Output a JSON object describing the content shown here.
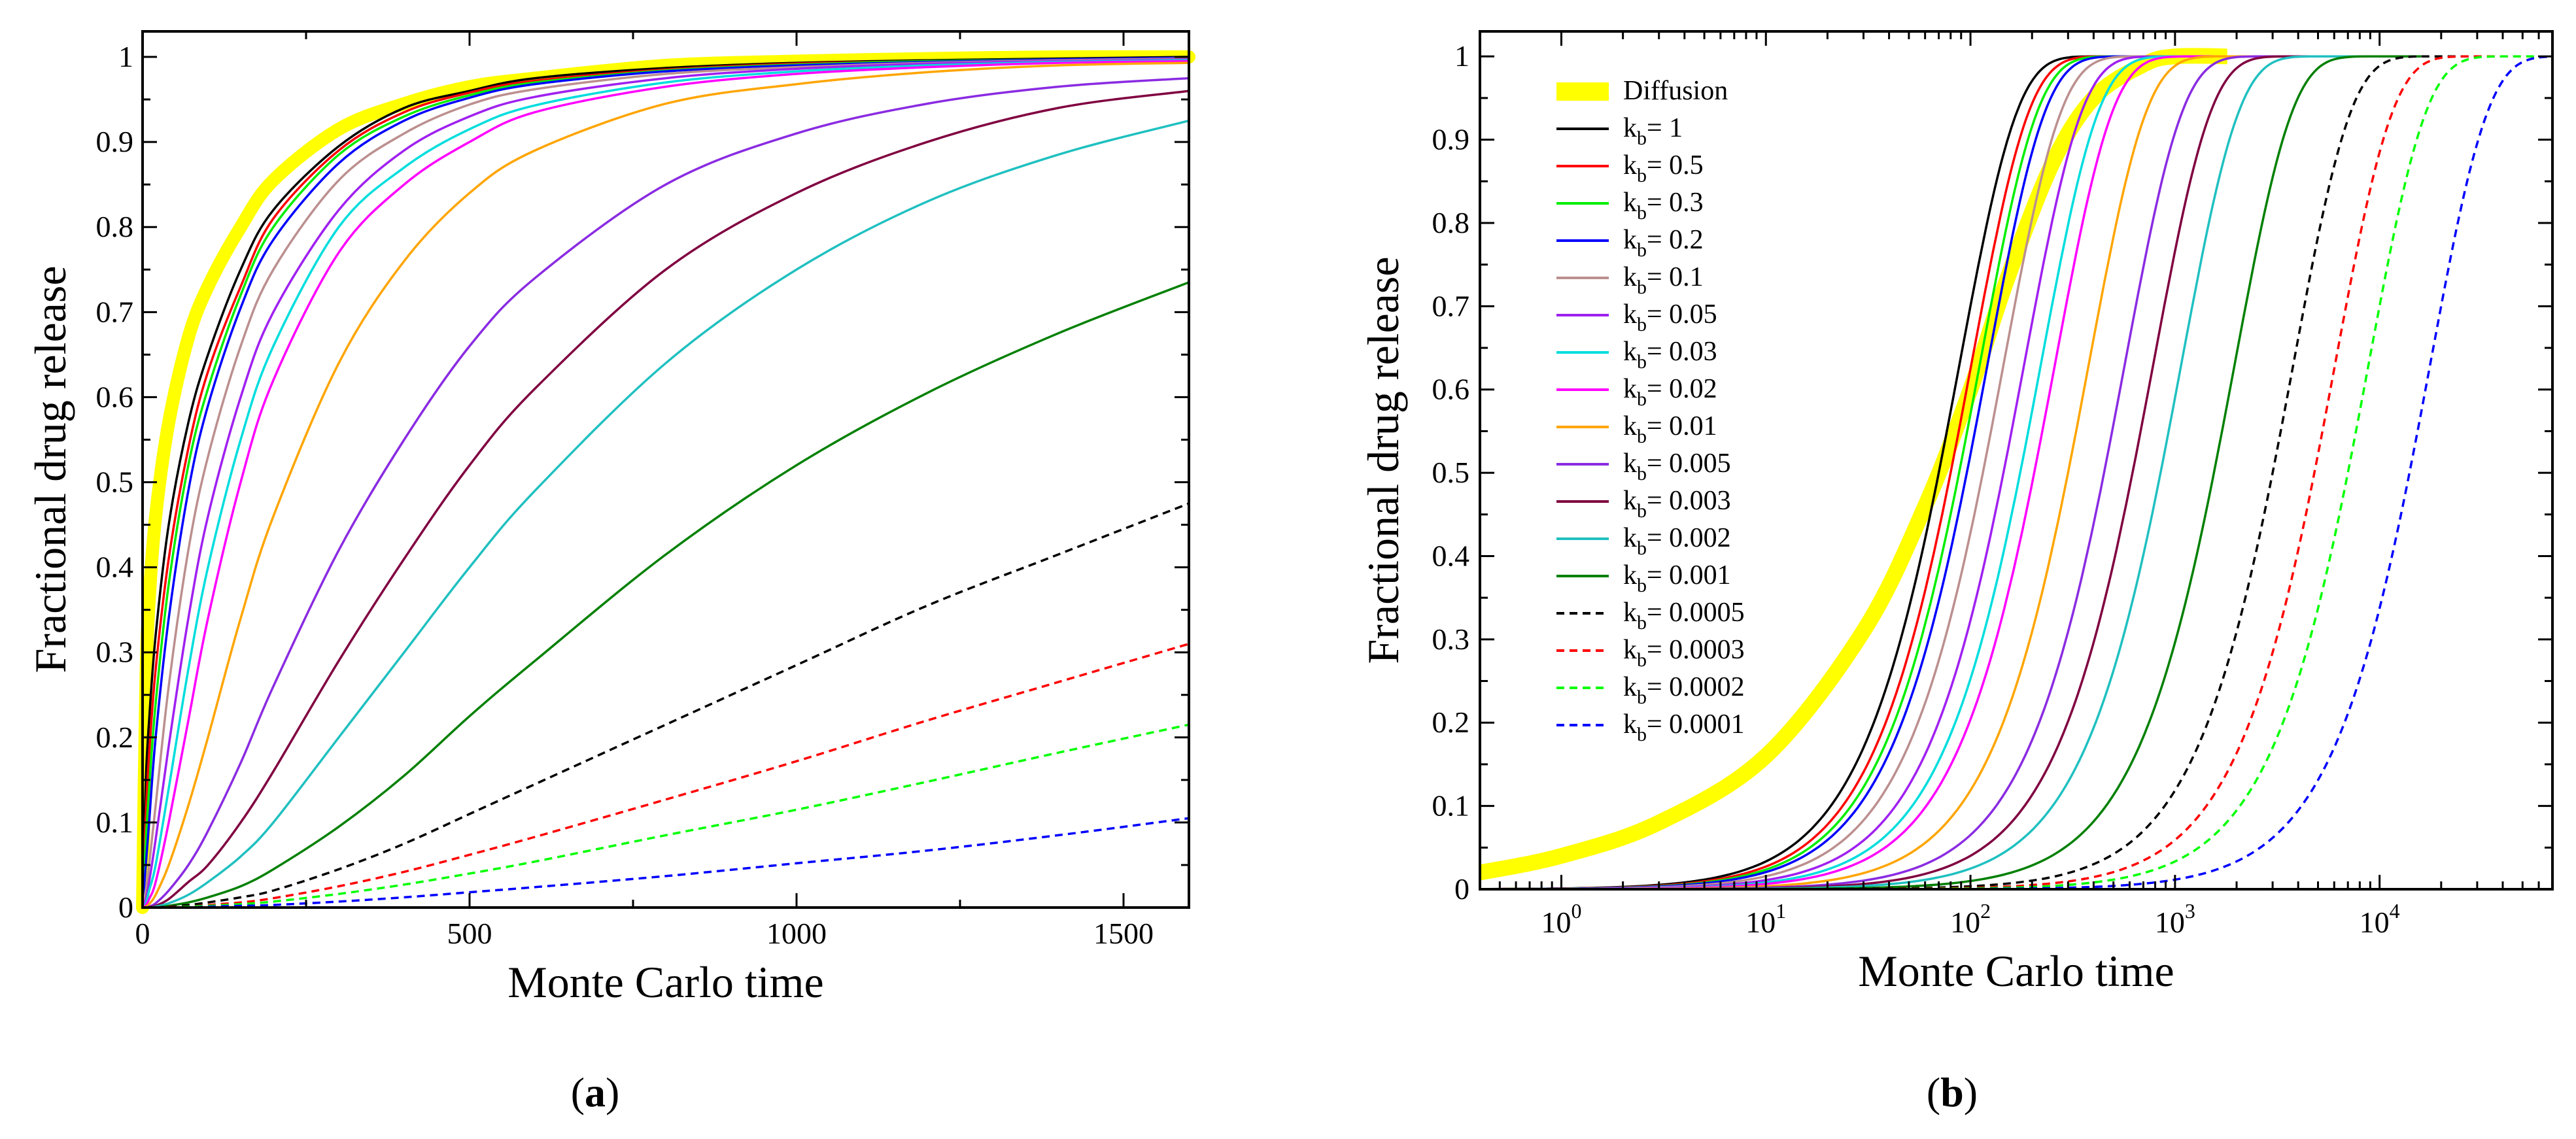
{
  "panel_labels": [
    {
      "open": "(",
      "letter": "a",
      "close": ")"
    },
    {
      "open": "(",
      "letter": "b",
      "close": ")"
    }
  ],
  "chart_data": [
    {
      "type": "line",
      "xlabel": "Monte Carlo time",
      "ylabel": "Fractional drug release",
      "xlim": [
        0,
        1600
      ],
      "ylim": [
        0,
        1.03
      ],
      "xscale": "linear",
      "x_ticks": [
        0,
        500,
        1000,
        1500
      ],
      "x_tick_labels": [
        "0",
        "500",
        "1000",
        "1500"
      ],
      "y_ticks": [
        0,
        0.1,
        0.2,
        0.3,
        0.4,
        0.5,
        0.6,
        0.7,
        0.8,
        0.9,
        1
      ],
      "y_tick_labels": [
        "0",
        "0.1",
        "0.2",
        "0.3",
        "0.4",
        "0.5",
        "0.6",
        "0.7",
        "0.8",
        "0.9",
        "1"
      ],
      "grid": false,
      "legend": "none",
      "x_samples": [
        0,
        5,
        10,
        20,
        40,
        70,
        100,
        150,
        200,
        300,
        400,
        500,
        600,
        800,
        1000,
        1200,
        1400,
        1600
      ],
      "series": [
        {
          "color": "#ffff00",
          "style": "thick",
          "values": [
            0,
            0.26,
            0.36,
            0.46,
            0.57,
            0.67,
            0.73,
            0.8,
            0.855,
            0.915,
            0.945,
            0.965,
            0.975,
            0.99,
            0.995,
            0.998,
            1.0,
            1.0
          ]
        },
        {
          "color": "#000000",
          "style": "solid",
          "values": [
            0,
            0.15,
            0.22,
            0.32,
            0.45,
            0.57,
            0.65,
            0.75,
            0.82,
            0.895,
            0.94,
            0.96,
            0.975,
            0.987,
            0.993,
            0.996,
            0.998,
            1.0
          ]
        },
        {
          "color": "#ff0000",
          "style": "solid",
          "values": [
            0,
            0.11,
            0.18,
            0.28,
            0.41,
            0.54,
            0.63,
            0.73,
            0.81,
            0.89,
            0.935,
            0.958,
            0.972,
            0.985,
            0.992,
            0.995,
            0.997,
            0.999
          ]
        },
        {
          "color": "#00ee00",
          "style": "solid",
          "values": [
            0,
            0.08,
            0.14,
            0.24,
            0.38,
            0.52,
            0.61,
            0.72,
            0.8,
            0.885,
            0.93,
            0.955,
            0.97,
            0.984,
            0.991,
            0.995,
            0.997,
            0.999
          ]
        },
        {
          "color": "#0000ff",
          "style": "solid",
          "values": [
            0,
            0.05,
            0.1,
            0.2,
            0.34,
            0.49,
            0.59,
            0.705,
            0.785,
            0.875,
            0.925,
            0.952,
            0.968,
            0.983,
            0.99,
            0.994,
            0.997,
            0.999
          ]
        },
        {
          "color": "#bc8f8f",
          "style": "solid",
          "values": [
            0,
            0.02,
            0.05,
            0.12,
            0.26,
            0.42,
            0.53,
            0.66,
            0.75,
            0.855,
            0.91,
            0.944,
            0.962,
            0.98,
            0.988,
            0.993,
            0.996,
            0.998
          ]
        },
        {
          "color": "#a020f0",
          "style": "solid",
          "values": [
            0,
            0.01,
            0.03,
            0.08,
            0.19,
            0.34,
            0.46,
            0.6,
            0.7,
            0.82,
            0.89,
            0.93,
            0.953,
            0.975,
            0.986,
            0.992,
            0.995,
            0.997
          ]
        },
        {
          "color": "#00dddd",
          "style": "solid",
          "values": [
            0,
            0.005,
            0.02,
            0.05,
            0.14,
            0.28,
            0.4,
            0.55,
            0.66,
            0.8,
            0.87,
            0.915,
            0.943,
            0.97,
            0.983,
            0.99,
            0.994,
            0.996
          ]
        },
        {
          "color": "#ff00ff",
          "style": "solid",
          "values": [
            0,
            0.003,
            0.01,
            0.03,
            0.1,
            0.22,
            0.34,
            0.5,
            0.62,
            0.77,
            0.85,
            0.9,
            0.935,
            0.965,
            0.98,
            0.988,
            0.993,
            0.995
          ]
        },
        {
          "color": "#ffa500",
          "style": "solid",
          "values": [
            0,
            0.001,
            0.004,
            0.015,
            0.05,
            0.12,
            0.2,
            0.34,
            0.46,
            0.64,
            0.76,
            0.84,
            0.89,
            0.945,
            0.968,
            0.982,
            0.99,
            0.993
          ]
        },
        {
          "color": "#8a2be2",
          "style": "solid",
          "values": [
            0,
            0,
            0.001,
            0.005,
            0.02,
            0.05,
            0.09,
            0.17,
            0.26,
            0.42,
            0.55,
            0.66,
            0.74,
            0.85,
            0.91,
            0.945,
            0.965,
            0.975
          ]
        },
        {
          "color": "#800040",
          "style": "solid",
          "values": [
            0,
            0,
            0.0005,
            0.002,
            0.01,
            0.03,
            0.05,
            0.1,
            0.16,
            0.29,
            0.41,
            0.52,
            0.61,
            0.75,
            0.84,
            0.9,
            0.94,
            0.96
          ]
        },
        {
          "color": "#20c0c0",
          "style": "solid",
          "values": [
            0,
            0,
            0,
            0.001,
            0.005,
            0.015,
            0.03,
            0.06,
            0.1,
            0.2,
            0.3,
            0.4,
            0.49,
            0.64,
            0.75,
            0.83,
            0.885,
            0.925
          ]
        },
        {
          "color": "#008000",
          "style": "solid",
          "values": [
            0,
            0,
            0,
            0,
            0.002,
            0.006,
            0.012,
            0.025,
            0.045,
            0.095,
            0.155,
            0.225,
            0.29,
            0.415,
            0.52,
            0.605,
            0.675,
            0.735
          ]
        },
        {
          "color": "#000000",
          "style": "dashed",
          "values": [
            0,
            0,
            0,
            0,
            0.001,
            0.003,
            0.006,
            0.012,
            0.02,
            0.045,
            0.075,
            0.11,
            0.145,
            0.215,
            0.285,
            0.355,
            0.415,
            0.475
          ]
        },
        {
          "color": "#ff0000",
          "style": "dashed",
          "values": [
            0,
            0,
            0,
            0,
            0.0005,
            0.001,
            0.003,
            0.006,
            0.011,
            0.025,
            0.042,
            0.062,
            0.083,
            0.127,
            0.172,
            0.22,
            0.265,
            0.31
          ]
        },
        {
          "color": "#00ff00",
          "style": "dashed",
          "values": [
            0,
            0,
            0,
            0,
            0,
            0.001,
            0.002,
            0.004,
            0.007,
            0.016,
            0.027,
            0.04,
            0.054,
            0.085,
            0.115,
            0.148,
            0.182,
            0.215
          ]
        },
        {
          "color": "#0000ff",
          "style": "dashed",
          "values": [
            0,
            0,
            0,
            0,
            0,
            0,
            0.001,
            0.002,
            0.003,
            0.007,
            0.012,
            0.018,
            0.024,
            0.037,
            0.052,
            0.067,
            0.085,
            0.105
          ]
        }
      ]
    },
    {
      "type": "line",
      "xlabel": "Monte Carlo time",
      "ylabel": "Fractional drug release",
      "xscale": "log",
      "xlim": [
        0.4,
        70000
      ],
      "ylim": [
        0,
        1.03
      ],
      "x_ticks": [
        1,
        10,
        100,
        1000,
        10000
      ],
      "x_tick_labels": [
        {
          "base": "10",
          "exp": "0"
        },
        {
          "base": "10",
          "exp": "1"
        },
        {
          "base": "10",
          "exp": "2"
        },
        {
          "base": "10",
          "exp": "3"
        },
        {
          "base": "10",
          "exp": "4"
        }
      ],
      "y_ticks": [
        0,
        0.1,
        0.2,
        0.3,
        0.4,
        0.5,
        0.6,
        0.7,
        0.8,
        0.9,
        1
      ],
      "y_tick_labels": [
        "0",
        "0.1",
        "0.2",
        "0.3",
        "0.4",
        "0.5",
        "0.6",
        "0.7",
        "0.8",
        "0.9",
        "1"
      ],
      "grid": false,
      "legend": "top-left",
      "series": [
        {
          "name": "Diffusion",
          "color": "#ffff00",
          "style": "thick",
          "t_end": 1800,
          "x": [
            0.4,
            1,
            3,
            10,
            30,
            60,
            100,
            150,
            250,
            400,
            700,
            1000,
            1800
          ],
          "values": [
            0.02,
            0.04,
            0.08,
            0.16,
            0.31,
            0.46,
            0.6,
            0.73,
            0.87,
            0.95,
            0.99,
            1.0,
            1.0
          ]
        },
        {
          "name": "= 1",
          "kb": "k",
          "sub": "b",
          "color": "#000000",
          "style": "solid",
          "t50": 70,
          "t_end": 1800
        },
        {
          "name": "= 0.5",
          "kb": "k",
          "sub": "b",
          "color": "#ff0000",
          "style": "solid",
          "t50": 80,
          "t_end": 2000
        },
        {
          "name": "= 0.3",
          "kb": "k",
          "sub": "b",
          "color": "#00ee00",
          "style": "solid",
          "t50": 88,
          "t_end": 2200
        },
        {
          "name": "= 0.2",
          "kb": "k",
          "sub": "b",
          "color": "#0000ff",
          "style": "solid",
          "t50": 96,
          "t_end": 2400
        },
        {
          "name": "= 0.1",
          "kb": "k",
          "sub": "b",
          "color": "#bc8f8f",
          "style": "solid",
          "t50": 115,
          "t_end": 2600
        },
        {
          "name": "= 0.05",
          "kb": "k",
          "sub": "b",
          "color": "#a020f0",
          "style": "solid",
          "t50": 145,
          "t_end": 3000
        },
        {
          "name": "= 0.03",
          "kb": "k",
          "sub": "b",
          "color": "#00dddd",
          "style": "solid",
          "t50": 175,
          "t_end": 3400
        },
        {
          "name": "= 0.02",
          "kb": "k",
          "sub": "b",
          "color": "#ff00ff",
          "style": "solid",
          "t50": 205,
          "t_end": 3800
        },
        {
          "name": "= 0.01",
          "kb": "k",
          "sub": "b",
          "color": "#ffa500",
          "style": "solid",
          "t50": 300,
          "t_end": 4400
        },
        {
          "name": "= 0.005",
          "kb": "k",
          "sub": "b",
          "color": "#8a2be2",
          "style": "solid",
          "t50": 450,
          "t_end": 5500
        },
        {
          "name": "= 0.003",
          "kb": "k",
          "sub": "b",
          "color": "#800040",
          "style": "solid",
          "t50": 620,
          "t_end": 7000
        },
        {
          "name": "= 0.002",
          "kb": "k",
          "sub": "b",
          "color": "#20c0c0",
          "style": "solid",
          "t50": 850,
          "t_end": 9000
        },
        {
          "name": "= 0.001",
          "kb": "k",
          "sub": "b",
          "color": "#008000",
          "style": "solid",
          "t50": 1550,
          "t_end": 16000
        },
        {
          "name": "= 0.0005",
          "kb": "k",
          "sub": "b",
          "color": "#000000",
          "style": "dashed",
          "t50": 3000,
          "t_end": 30000
        },
        {
          "name": "= 0.0003",
          "kb": "k",
          "sub": "b",
          "color": "#ff0000",
          "style": "dashed",
          "t50": 4800,
          "t_end": 45000
        },
        {
          "name": "= 0.0002",
          "kb": "k",
          "sub": "b",
          "color": "#00ff00",
          "style": "dashed",
          "t50": 7000,
          "t_end": 60000
        },
        {
          "name": "= 0.0001",
          "kb": "k",
          "sub": "b",
          "color": "#0000ff",
          "style": "dashed",
          "t50": 14000,
          "t_end": 70000
        }
      ]
    }
  ]
}
